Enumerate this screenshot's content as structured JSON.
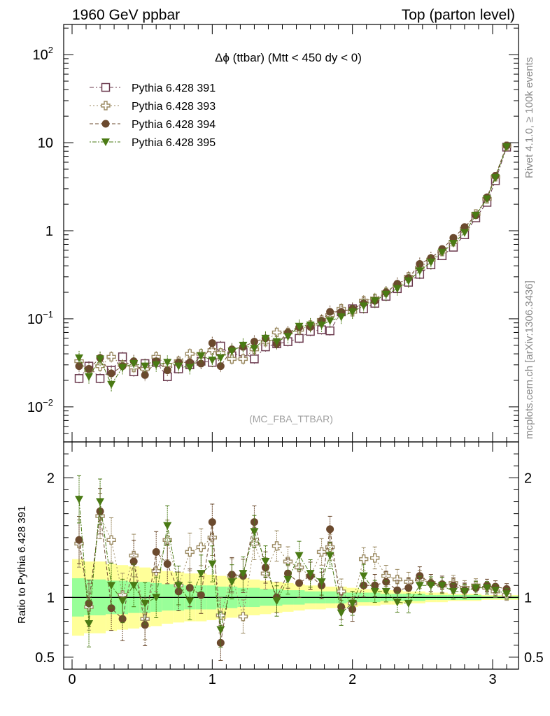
{
  "header": {
    "left": "1960 GeV ppbar",
    "right": "Top (parton level)"
  },
  "side_labels": {
    "rivet": "Rivet 4.1.0, ≥ 100k events",
    "mcplots": "mcplots.cern.ch [arXiv:1306.3436]"
  },
  "colors": {
    "s391": "#6b3a4e",
    "s393": "#9b8a62",
    "s394": "#6b4a2e",
    "s395": "#4a7a14",
    "band_yellow": "#ffff99",
    "band_green": "#99ff99"
  },
  "chart_data": {
    "type": "scatter",
    "title": "Δϕ (ttbar) (Mtt < 450 dy < 0)",
    "watermark": "(MC_FBA_TTBAR)",
    "xlabel": "",
    "ylabel_top": "",
    "ylabel_ratio": "Ratio to Pythia 6.428 391",
    "xlim": [
      -0.05,
      3.2
    ],
    "ylim_top": [
      0.004,
      220
    ],
    "ylim_ratio": [
      0.4,
      2.3
    ],
    "x_ticks": [
      "0",
      "1",
      "2",
      "3"
    ],
    "y_ticks_top": [
      {
        "base": "10",
        "exp": "−2",
        "value": 0.01
      },
      {
        "base": "10",
        "exp": "−1",
        "value": 0.1
      },
      {
        "base": "1",
        "exp": "",
        "value": 1
      },
      {
        "base": "10",
        "exp": "",
        "value": 10
      },
      {
        "base": "10",
        "exp": "2",
        "value": 100
      }
    ],
    "y_ticks_ratio": [
      "0.5",
      "1",
      "2"
    ],
    "legend_position": "top-left",
    "x": [
      0.05,
      0.12,
      0.2,
      0.28,
      0.36,
      0.44,
      0.52,
      0.6,
      0.68,
      0.76,
      0.84,
      0.92,
      1.0,
      1.06,
      1.14,
      1.22,
      1.3,
      1.38,
      1.46,
      1.54,
      1.62,
      1.7,
      1.78,
      1.84,
      1.92,
      2.0,
      2.08,
      2.16,
      2.24,
      2.32,
      2.4,
      2.48,
      2.56,
      2.64,
      2.72,
      2.8,
      2.88,
      2.96,
      3.02,
      3.1
    ],
    "series": [
      {
        "name": "Pythia 6.428 391",
        "marker": "open-square",
        "values": [
          0.021,
          0.029,
          0.021,
          0.026,
          0.037,
          0.025,
          0.031,
          0.032,
          0.022,
          0.027,
          0.03,
          0.033,
          0.032,
          0.049,
          0.038,
          0.042,
          0.035,
          0.048,
          0.052,
          0.055,
          0.06,
          0.072,
          0.075,
          0.073,
          0.12,
          0.13,
          0.13,
          0.15,
          0.18,
          0.22,
          0.26,
          0.32,
          0.41,
          0.52,
          0.65,
          0.9,
          1.4,
          2.1,
          3.7,
          8.9
        ],
        "ratio": [
          1.0,
          1.0,
          1.0,
          1.0,
          1.0,
          1.0,
          1.0,
          1.0,
          1.0,
          1.0,
          1.0,
          1.0,
          1.0,
          1.0,
          1.0,
          1.0,
          1.0,
          1.0,
          1.0,
          1.0,
          1.0,
          1.0,
          1.0,
          1.0,
          1.0,
          1.0,
          1.0,
          1.0,
          1.0,
          1.0,
          1.0,
          1.0,
          1.0,
          1.0,
          1.0,
          1.0,
          1.0,
          1.0,
          1.0,
          1.0
        ]
      },
      {
        "name": "Pythia 6.428 393",
        "marker": "open-cross",
        "values": [
          0.033,
          0.026,
          0.029,
          0.037,
          0.03,
          0.028,
          0.027,
          0.037,
          0.03,
          0.033,
          0.04,
          0.04,
          0.044,
          0.041,
          0.035,
          0.035,
          0.045,
          0.055,
          0.07,
          0.07,
          0.075,
          0.085,
          0.097,
          0.11,
          0.13,
          0.12,
          0.16,
          0.17,
          0.2,
          0.24,
          0.3,
          0.38,
          0.47,
          0.58,
          0.75,
          1.05,
          1.55,
          2.3,
          4.1,
          9.1
        ],
        "ratio": [
          1.45,
          0.92,
          1.68,
          1.48,
          1.02,
          1.35,
          0.82,
          1.22,
          1.48,
          1.1,
          1.38,
          1.42,
          1.5,
          0.85,
          1.18,
          0.84,
          1.45,
          1.2,
          1.43,
          1.3,
          1.25,
          1.18,
          1.38,
          1.42,
          1.05,
          0.95,
          1.32,
          1.33,
          1.18,
          1.15,
          1.13,
          1.15,
          1.12,
          1.1,
          1.12,
          1.08,
          1.1,
          1.08,
          1.05,
          1.02
        ]
      },
      {
        "name": "Pythia 6.428 394",
        "marker": "filled-circle",
        "values": [
          0.029,
          0.027,
          0.036,
          0.024,
          0.029,
          0.033,
          0.023,
          0.033,
          0.026,
          0.032,
          0.032,
          0.031,
          0.053,
          0.029,
          0.045,
          0.048,
          0.055,
          0.06,
          0.052,
          0.07,
          0.08,
          0.081,
          0.095,
          0.12,
          0.12,
          0.13,
          0.15,
          0.16,
          0.2,
          0.25,
          0.29,
          0.42,
          0.49,
          0.62,
          0.83,
          1.1,
          1.5,
          2.4,
          4.2,
          9.3
        ],
        "ratio": [
          1.48,
          0.95,
          1.72,
          0.91,
          0.82,
          1.3,
          0.77,
          1.38,
          1.28,
          1.05,
          1.08,
          1.02,
          1.63,
          0.62,
          1.19,
          1.18,
          1.63,
          1.25,
          1.0,
          1.2,
          1.12,
          1.18,
          1.1,
          1.57,
          0.92,
          0.9,
          1.1,
          1.1,
          1.13,
          1.06,
          1.08,
          1.18,
          1.12,
          1.11,
          1.1,
          1.06,
          1.08,
          1.1,
          1.09,
          1.07
        ]
      },
      {
        "name": "Pythia 6.428 395",
        "marker": "filled-triangle-down",
        "values": [
          0.036,
          0.022,
          0.035,
          0.018,
          0.028,
          0.031,
          0.029,
          0.03,
          0.032,
          0.029,
          0.028,
          0.038,
          0.034,
          0.036,
          0.043,
          0.05,
          0.046,
          0.06,
          0.055,
          0.063,
          0.082,
          0.085,
          0.085,
          0.095,
          0.105,
          0.12,
          0.14,
          0.16,
          0.19,
          0.22,
          0.27,
          0.35,
          0.44,
          0.57,
          0.72,
          0.95,
          1.5,
          2.3,
          4.0,
          9.0
        ],
        "ratio": [
          1.82,
          0.78,
          1.8,
          1.1,
          0.97,
          1.1,
          0.95,
          1.0,
          1.6,
          1.1,
          0.97,
          1.2,
          1.28,
          0.73,
          1.13,
          1.2,
          1.55,
          1.3,
          0.97,
          1.15,
          1.35,
          1.2,
          1.13,
          1.35,
          0.87,
          0.95,
          1.18,
          1.05,
          1.05,
          0.96,
          0.95,
          1.1,
          1.1,
          1.1,
          1.05,
          1.05,
          1.08,
          1.08,
          1.06,
          1.03
        ]
      }
    ],
    "band_outer_half": [
      0.32,
      0.3,
      0.3,
      0.28,
      0.27,
      0.26,
      0.25,
      0.24,
      0.22,
      0.21,
      0.2,
      0.2,
      0.19,
      0.18,
      0.17,
      0.16,
      0.15,
      0.14,
      0.13,
      0.12,
      0.11,
      0.1,
      0.1,
      0.09,
      0.09,
      0.08,
      0.07,
      0.07,
      0.06,
      0.06,
      0.05,
      0.05,
      0.04,
      0.04,
      0.03,
      0.03,
      0.03,
      0.02,
      0.02,
      0.02
    ],
    "band_inner_half": [
      0.16,
      0.15,
      0.15,
      0.14,
      0.14,
      0.13,
      0.13,
      0.12,
      0.11,
      0.11,
      0.1,
      0.1,
      0.1,
      0.09,
      0.09,
      0.08,
      0.08,
      0.07,
      0.07,
      0.06,
      0.06,
      0.05,
      0.05,
      0.05,
      0.05,
      0.04,
      0.04,
      0.04,
      0.03,
      0.03,
      0.03,
      0.03,
      0.02,
      0.02,
      0.02,
      0.02,
      0.02,
      0.01,
      0.01,
      0.01
    ]
  }
}
